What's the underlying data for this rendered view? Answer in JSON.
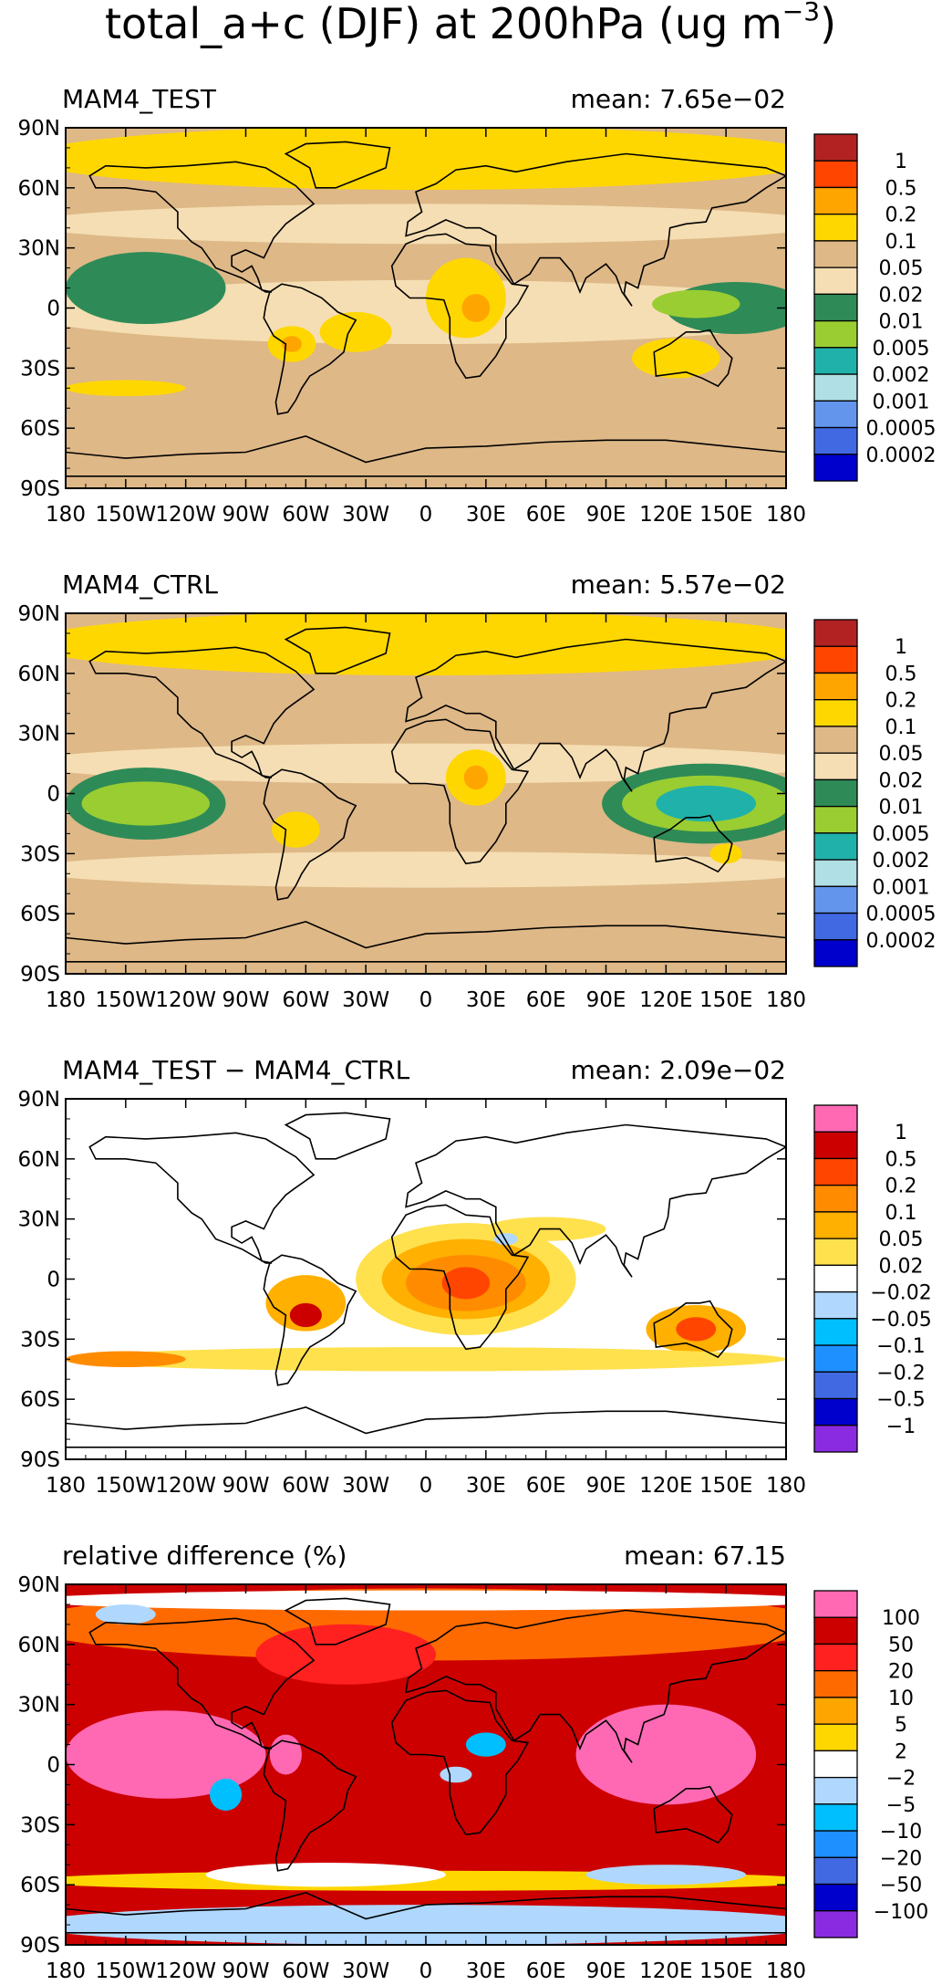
{
  "figure": {
    "title_main": "total_a+c (DJF) at 200hPa (ug m",
    "title_exp": "−3",
    "title_close": ")"
  },
  "chart_data": [
    {
      "type": "heatmap",
      "panel_label": "MAM4_TEST",
      "mean_label": "mean: 7.65e−02",
      "mean": 0.0765,
      "x_ticks": [
        "180",
        "150W",
        "120W",
        "90W",
        "60W",
        "30W",
        "0",
        "30E",
        "60E",
        "90E",
        "120E",
        "150E",
        "180"
      ],
      "y_ticks": [
        "90N",
        "60N",
        "30N",
        "0",
        "30S",
        "60S",
        "90S"
      ],
      "xlim": [
        -180,
        180
      ],
      "ylim": [
        -90,
        90
      ],
      "levels": [
        "1",
        "0.5",
        "0.2",
        "0.1",
        "0.05",
        "0.02",
        "0.01",
        "0.005",
        "0.002",
        "0.001",
        "0.0005",
        "0.0002"
      ],
      "colors": [
        "#b22222",
        "#ff4500",
        "#ffa500",
        "#ffd700",
        "#deb887",
        "#f5deb3",
        "#2e8b57",
        "#9acd32",
        "#20b2aa",
        "#b0e0e6",
        "#6495ed",
        "#4169e1",
        "#0000cd"
      ]
    },
    {
      "type": "heatmap",
      "panel_label": "MAM4_CTRL",
      "mean_label": "mean: 5.57e−02",
      "mean": 0.0557,
      "x_ticks": [
        "180",
        "150W",
        "120W",
        "90W",
        "60W",
        "30W",
        "0",
        "30E",
        "60E",
        "90E",
        "120E",
        "150E",
        "180"
      ],
      "y_ticks": [
        "90N",
        "60N",
        "30N",
        "0",
        "30S",
        "60S",
        "90S"
      ],
      "xlim": [
        -180,
        180
      ],
      "ylim": [
        -90,
        90
      ],
      "levels": [
        "1",
        "0.5",
        "0.2",
        "0.1",
        "0.05",
        "0.02",
        "0.01",
        "0.005",
        "0.002",
        "0.001",
        "0.0005",
        "0.0002"
      ],
      "colors": [
        "#b22222",
        "#ff4500",
        "#ffa500",
        "#ffd700",
        "#deb887",
        "#f5deb3",
        "#2e8b57",
        "#9acd32",
        "#20b2aa",
        "#b0e0e6",
        "#6495ed",
        "#4169e1",
        "#0000cd"
      ]
    },
    {
      "type": "heatmap",
      "panel_label": "MAM4_TEST − MAM4_CTRL",
      "mean_label": "mean: 2.09e−02",
      "mean": 0.0209,
      "x_ticks": [
        "180",
        "150W",
        "120W",
        "90W",
        "60W",
        "30W",
        "0",
        "30E",
        "60E",
        "90E",
        "120E",
        "150E",
        "180"
      ],
      "y_ticks": [
        "90N",
        "60N",
        "30N",
        "0",
        "30S",
        "60S",
        "90S"
      ],
      "xlim": [
        -180,
        180
      ],
      "ylim": [
        -90,
        90
      ],
      "levels": [
        "1",
        "0.5",
        "0.2",
        "0.1",
        "0.05",
        "0.02",
        "−0.02",
        "−0.05",
        "−0.1",
        "−0.2",
        "−0.5",
        "−1"
      ],
      "colors": [
        "#ff69b4",
        "#cd0000",
        "#ff4500",
        "#ff8c00",
        "#ffb000",
        "#ffe14d",
        "#ffffff",
        "#b0d8ff",
        "#00bfff",
        "#1e90ff",
        "#4169e1",
        "#0000cd",
        "#8a2be2"
      ]
    },
    {
      "type": "heatmap",
      "panel_label": "relative difference (%)",
      "mean_label": "mean: 67.15",
      "mean": 67.15,
      "x_ticks": [
        "180",
        "150W",
        "120W",
        "90W",
        "60W",
        "30W",
        "0",
        "30E",
        "60E",
        "90E",
        "120E",
        "150E",
        "180"
      ],
      "y_ticks": [
        "90N",
        "60N",
        "30N",
        "0",
        "30S",
        "60S",
        "90S"
      ],
      "xlim": [
        -180,
        180
      ],
      "ylim": [
        -90,
        90
      ],
      "levels": [
        "100",
        "50",
        "20",
        "10",
        "5",
        "2",
        "−2",
        "−5",
        "−10",
        "−20",
        "−50",
        "−100"
      ],
      "colors": [
        "#ff69b4",
        "#cd0000",
        "#ff2020",
        "#ff6a00",
        "#ffa500",
        "#ffd700",
        "#ffffff",
        "#b0d8ff",
        "#00bfff",
        "#1e90ff",
        "#4169e1",
        "#0000cd",
        "#8a2be2"
      ]
    }
  ]
}
